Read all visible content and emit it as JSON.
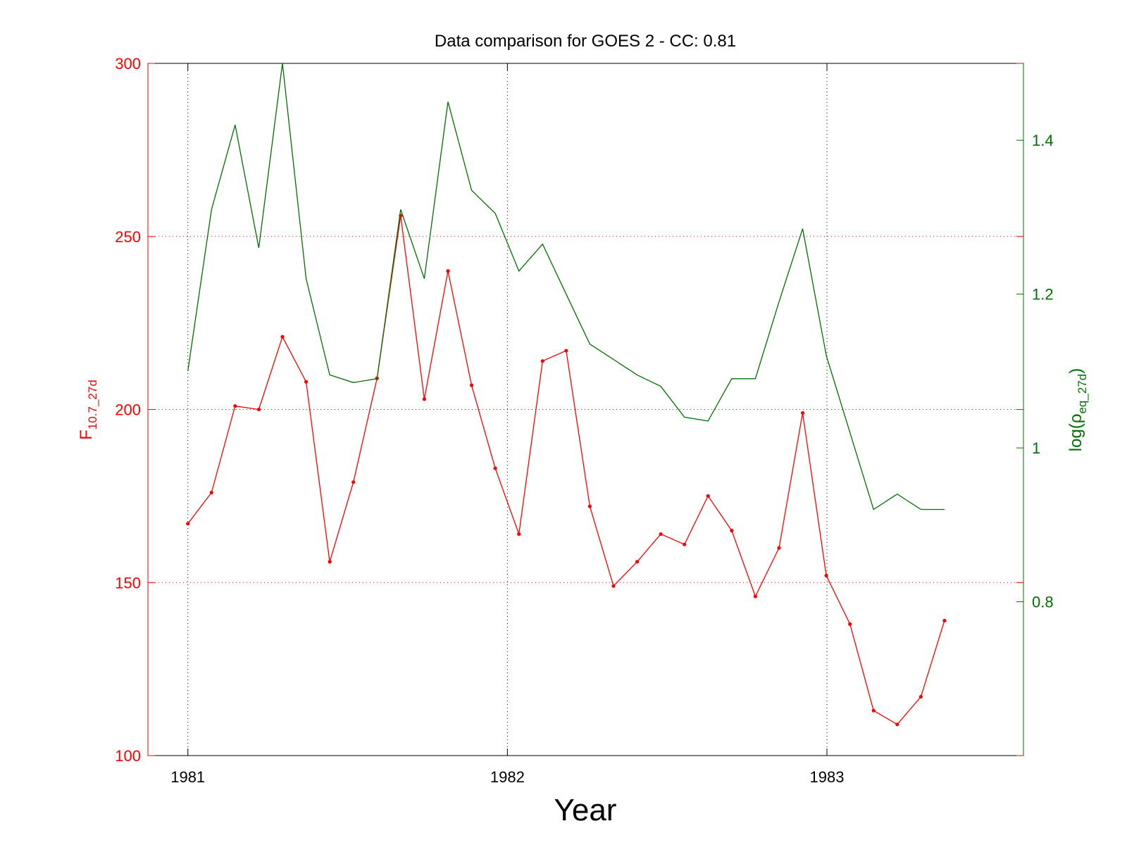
{
  "chart_data": {
    "type": "line",
    "title": "Data comparison for GOES 2 - CC: 0.81",
    "xlabel": "Year",
    "ylabel_left": {
      "base": "F",
      "subscript": "10.7_27d"
    },
    "ylabel_right": {
      "prefix": "log(ρ",
      "subscript": "eq_27d",
      "suffix": ")"
    },
    "x_ticks": [
      "1981",
      "1982",
      "1983"
    ],
    "x_tick_values": [
      1981,
      1982,
      1983
    ],
    "y_left_ticks": [
      "100",
      "150",
      "200",
      "250",
      "300"
    ],
    "y_left_tick_values": [
      100,
      150,
      200,
      250,
      300
    ],
    "y_right_ticks": [
      "0.8",
      "1",
      "1.2",
      "1.4"
    ],
    "y_right_tick_values": [
      0.8,
      1.0,
      1.2,
      1.4
    ],
    "xlim": [
      1980.875,
      1983.615
    ],
    "ylim_left": [
      100,
      300
    ],
    "ylim_right": [
      0.6,
      1.5
    ],
    "grid": true,
    "series": [
      {
        "name": "F10.7_27d",
        "axis": "left",
        "color": "#ff0000",
        "markers": true,
        "x": [
          1981.0,
          1981.074,
          1981.148,
          1981.222,
          1981.296,
          1981.37,
          1981.444,
          1981.518,
          1981.592,
          1981.666,
          1981.74,
          1981.814,
          1981.888,
          1981.962,
          1982.036,
          1982.11,
          1982.184,
          1982.258,
          1982.332,
          1982.406,
          1982.48,
          1982.554,
          1982.628,
          1982.702,
          1982.776,
          1982.85,
          1982.924,
          1982.998,
          1983.072,
          1983.146,
          1983.22,
          1983.294,
          1983.368
        ],
        "values": [
          167,
          176,
          201,
          200,
          221,
          208,
          156,
          179,
          209,
          256,
          203,
          240,
          207,
          183,
          164,
          214,
          217,
          172,
          149,
          156,
          164,
          161,
          175,
          165,
          146,
          160,
          199,
          152,
          138,
          113,
          109,
          117,
          139
        ]
      },
      {
        "name": "log(ρeq_27d)",
        "axis": "right",
        "color": "#007000",
        "markers": false,
        "x": [
          1981.0,
          1981.074,
          1981.148,
          1981.222,
          1981.296,
          1981.37,
          1981.444,
          1981.518,
          1981.592,
          1981.666,
          1981.74,
          1981.814,
          1981.888,
          1981.962,
          1982.036,
          1982.11,
          1982.184,
          1982.258,
          1982.332,
          1982.406,
          1982.48,
          1982.554,
          1982.628,
          1982.702,
          1982.776,
          1982.85,
          1982.924,
          1982.998,
          1983.072,
          1983.146,
          1983.22,
          1983.294,
          1983.368
        ],
        "values": [
          1.1,
          1.31,
          1.42,
          1.26,
          1.5,
          1.22,
          1.095,
          1.085,
          1.09,
          1.31,
          1.22,
          1.45,
          1.335,
          1.305,
          1.23,
          1.265,
          1.2,
          1.135,
          1.115,
          1.095,
          1.08,
          1.04,
          1.035,
          1.09,
          1.09,
          1.19,
          1.285,
          1.12,
          1.02,
          0.92,
          0.94,
          0.92,
          0.92
        ]
      }
    ]
  }
}
